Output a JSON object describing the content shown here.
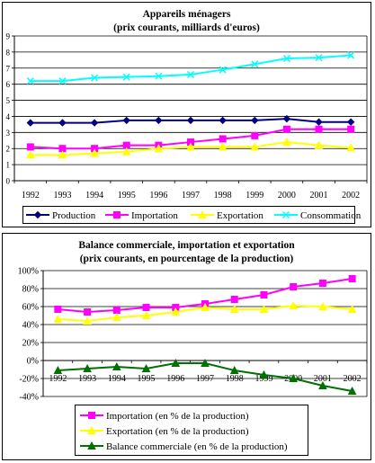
{
  "chart_data": [
    {
      "type": "line",
      "title": "Appareils ménagers",
      "subtitle": "(prix courants, milliards d'euros)",
      "categories": [
        "1992",
        "1993",
        "1994",
        "1995",
        "1996",
        "1997",
        "1998",
        "1999",
        "2000",
        "2001",
        "2002"
      ],
      "ylim": [
        0,
        9
      ],
      "yticks": [
        "0",
        "1",
        "2",
        "3",
        "4",
        "5",
        "6",
        "7",
        "8",
        "9"
      ],
      "grid": true,
      "legend_position": "bottom",
      "series": [
        {
          "name": "Production",
          "color": "#000080",
          "marker": "diamond",
          "values": [
            3.6,
            3.6,
            3.6,
            3.75,
            3.75,
            3.75,
            3.75,
            3.75,
            3.85,
            3.65,
            3.65
          ]
        },
        {
          "name": "Importation",
          "color": "#ff00ff",
          "marker": "square",
          "values": [
            2.1,
            2.0,
            2.0,
            2.2,
            2.2,
            2.4,
            2.6,
            2.8,
            3.2,
            3.2,
            3.2
          ]
        },
        {
          "name": "Exportation",
          "color": "#ffff00",
          "marker": "triangle",
          "values": [
            1.6,
            1.6,
            1.7,
            1.8,
            2.0,
            2.1,
            2.1,
            2.1,
            2.4,
            2.2,
            2.05
          ]
        },
        {
          "name": "Consommation",
          "color": "#00ffff",
          "marker": "cross",
          "values": [
            6.2,
            6.2,
            6.4,
            6.45,
            6.5,
            6.6,
            6.9,
            7.25,
            7.6,
            7.65,
            7.8
          ]
        }
      ]
    },
    {
      "type": "line",
      "title": "Balance commerciale, importation et exportation",
      "subtitle": "(prix courants, en pourcentage de la production)",
      "categories": [
        "1992",
        "1993",
        "1994",
        "1995",
        "1996",
        "1997",
        "1998",
        "1999",
        "2000",
        "2001",
        "2002"
      ],
      "ylim": [
        -40,
        100
      ],
      "yticks": [
        "-40%",
        "-20%",
        "0%",
        "20%",
        "40%",
        "60%",
        "80%",
        "100%"
      ],
      "grid": true,
      "legend_position": "bottom",
      "series": [
        {
          "name": "Importation (en % de la production)",
          "color": "#ff00ff",
          "marker": "square",
          "values": [
            57,
            54,
            56,
            59,
            59,
            63,
            68,
            73,
            82,
            86,
            91
          ]
        },
        {
          "name": "Exportation (en % de la production)",
          "color": "#ffff00",
          "marker": "triangle",
          "values": [
            46,
            44,
            48,
            50,
            54,
            59,
            57,
            57,
            61,
            60,
            57
          ]
        },
        {
          "name": "Balance commerciale (en % de la production)",
          "color": "#007000",
          "marker": "triangle",
          "values": [
            -11,
            -9,
            -7,
            -9,
            -3,
            -3,
            -11,
            -16,
            -20,
            -28,
            -34
          ]
        }
      ]
    }
  ]
}
